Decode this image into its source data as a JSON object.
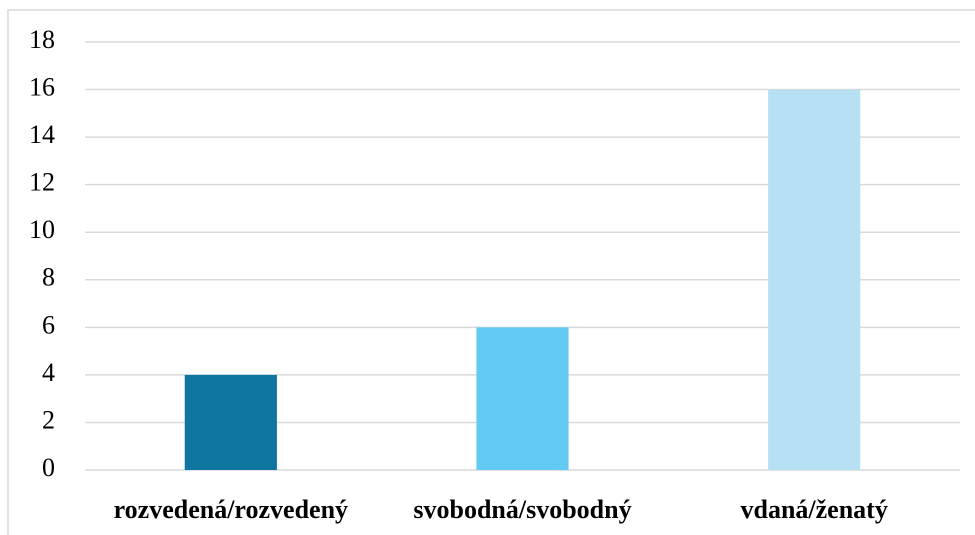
{
  "chart_data": {
    "type": "bar",
    "categories": [
      "rozvedená/rozvedený",
      "svobodná/svobodný",
      "vdaná/ženatý"
    ],
    "values": [
      4,
      6,
      16
    ],
    "colors": [
      "#0e76a0",
      "#63cbf3",
      "#b7e1f2"
    ],
    "ylim": [
      0,
      18
    ],
    "yticks": [
      0,
      2,
      4,
      6,
      8,
      10,
      12,
      14,
      16,
      18
    ],
    "grid": true
  }
}
